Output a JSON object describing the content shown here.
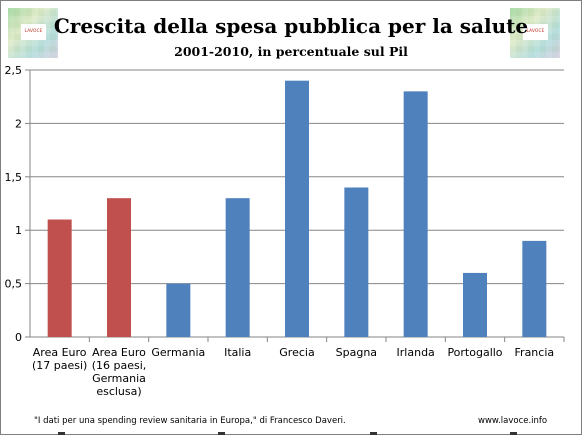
{
  "logo_text": "LAVOCE",
  "footer": {
    "source": "\"I dati per una spending review sanitaria in Europa,\" di Francesco Daveri.",
    "site": "www.lavoce.info"
  },
  "colors": {
    "red": "#c0504d",
    "blue": "#4f81bd",
    "grid": "#868686",
    "axis": "#868686"
  },
  "chart_data": {
    "type": "bar",
    "title": "Crescita della spesa pubblica per la salute",
    "subtitle": "2001-2010, in percentuale sul Pil",
    "xlabel": "",
    "ylabel": "",
    "ylim": [
      0,
      2.5
    ],
    "yticks": [
      "0",
      "0,5",
      "1",
      "1,5",
      "2",
      "2,5"
    ],
    "grid": true,
    "legend": "none",
    "categories": [
      [
        "Area Euro",
        "(17 paesi)"
      ],
      [
        "Area Euro",
        "(16 paesi,",
        "Germania",
        "esclusa)"
      ],
      [
        "Germania"
      ],
      [
        "Italia"
      ],
      [
        "Grecia"
      ],
      [
        "Spagna"
      ],
      [
        "Irlanda"
      ],
      [
        "Portogallo"
      ],
      [
        "Francia"
      ]
    ],
    "values": [
      1.1,
      1.3,
      0.5,
      1.3,
      2.4,
      1.4,
      2.3,
      0.6,
      0.9
    ],
    "bar_colors": [
      "#c0504d",
      "#c0504d",
      "#4f81bd",
      "#4f81bd",
      "#4f81bd",
      "#4f81bd",
      "#4f81bd",
      "#4f81bd",
      "#4f81bd"
    ]
  }
}
